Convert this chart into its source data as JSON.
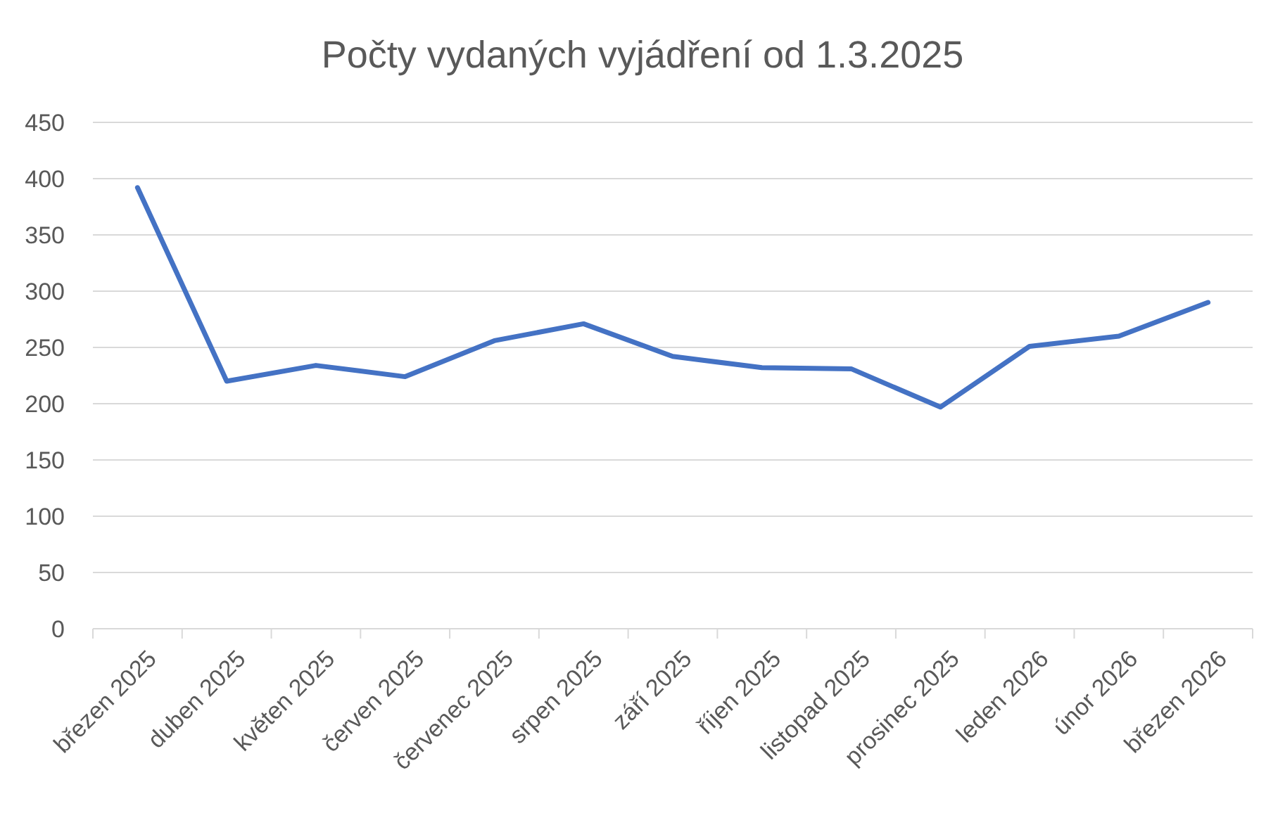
{
  "chart_data": {
    "type": "line",
    "title": "Počty vydaných vyjádření od 1.3.2025",
    "categories": [
      "březen 2025",
      "duben 2025",
      "květen 2025",
      "červen 2025",
      "červenec 2025",
      "srpen 2025",
      "září 2025",
      "říjen 2025",
      "listopad 2025",
      "prosinec 2025",
      "leden 2026",
      "únor 2026",
      "březen 2026"
    ],
    "series": [
      {
        "color": "#4472c4",
        "values": [
          392,
          220,
          234,
          224,
          256,
          271,
          242,
          232,
          231,
          197,
          251,
          260,
          290
        ]
      }
    ],
    "ylim": [
      0,
      450
    ],
    "yticks": [
      0,
      50,
      100,
      150,
      200,
      250,
      300,
      350,
      400,
      450
    ],
    "grid": "y",
    "marker": "none",
    "line_style": "solid"
  }
}
